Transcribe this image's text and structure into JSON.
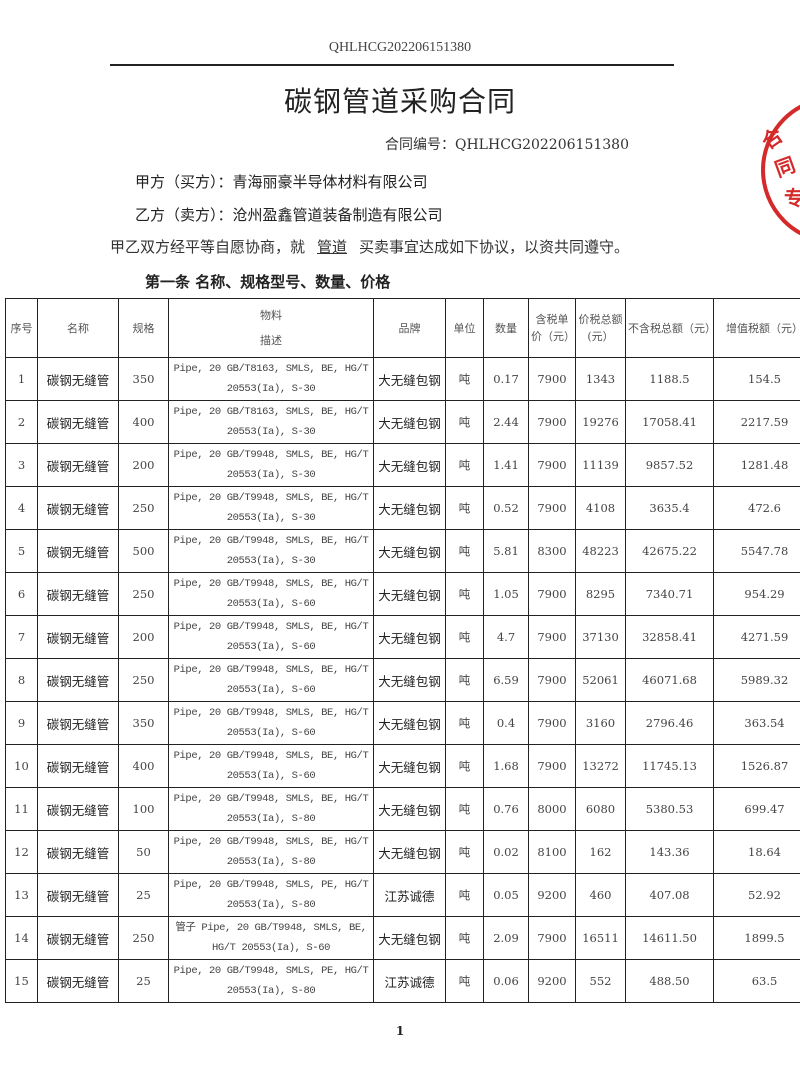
{
  "header": {
    "code": "QHLHCG202206151380"
  },
  "title": "碳钢管道采购合同",
  "contract_no": {
    "label": "合同编号：",
    "value": "QHLHCG202206151380"
  },
  "party_a": {
    "label": "甲方（买方）：",
    "value": "青海丽豪半导体材料有限公司"
  },
  "party_b": {
    "label": "乙方（卖方）：",
    "value": "沧州盈鑫管道装备制造有限公司"
  },
  "agreement": {
    "before": "甲乙双方经平等自愿协商，就",
    "subject": "管道",
    "after": "买卖事宜达成如下协议，以资共同遵守。"
  },
  "article": "第一条 名称、规格型号、数量、价格",
  "stamp": {
    "color": "#d42a2a",
    "text": "合同专"
  },
  "table": {
    "headers": {
      "no": "序号",
      "name": "名称",
      "spec": "规格",
      "material": "物料",
      "desc": "描述",
      "brand": "品牌",
      "unit": "单位",
      "qty": "数量",
      "price": "含税单价（元）",
      "total": "价税总额(元）",
      "net": "不含税总额（元）",
      "vat": "增值税额（元）"
    },
    "rows": [
      {
        "no": "1",
        "name": "碳钢无缝管",
        "spec": "350",
        "desc": "Pipe, 20 GB/T8163, SMLS, BE, HG/T 20553(Ia), S-30",
        "brand": "大无缝包钢",
        "unit": "吨",
        "qty": "0.17",
        "price": "7900",
        "total": "1343",
        "net": "1188.5",
        "vat": "154.5"
      },
      {
        "no": "2",
        "name": "碳钢无缝管",
        "spec": "400",
        "desc": "Pipe, 20 GB/T8163, SMLS, BE, HG/T 20553(Ia), S-30",
        "brand": "大无缝包钢",
        "unit": "吨",
        "qty": "2.44",
        "price": "7900",
        "total": "19276",
        "net": "17058.41",
        "vat": "2217.59"
      },
      {
        "no": "3",
        "name": "碳钢无缝管",
        "spec": "200",
        "desc": "Pipe, 20 GB/T9948, SMLS, BE, HG/T 20553(Ia), S-30",
        "brand": "大无缝包钢",
        "unit": "吨",
        "qty": "1.41",
        "price": "7900",
        "total": "11139",
        "net": "9857.52",
        "vat": "1281.48"
      },
      {
        "no": "4",
        "name": "碳钢无缝管",
        "spec": "250",
        "desc": "Pipe, 20 GB/T9948, SMLS, BE, HG/T 20553(Ia), S-30",
        "brand": "大无缝包钢",
        "unit": "吨",
        "qty": "0.52",
        "price": "7900",
        "total": "4108",
        "net": "3635.4",
        "vat": "472.6"
      },
      {
        "no": "5",
        "name": "碳钢无缝管",
        "spec": "500",
        "desc": "Pipe, 20 GB/T9948, SMLS, BE, HG/T 20553(Ia), S-30",
        "brand": "大无缝包钢",
        "unit": "吨",
        "qty": "5.81",
        "price": "8300",
        "total": "48223",
        "net": "42675.22",
        "vat": "5547.78"
      },
      {
        "no": "6",
        "name": "碳钢无缝管",
        "spec": "250",
        "desc": "Pipe, 20 GB/T9948, SMLS, BE, HG/T 20553(Ia), S-60",
        "brand": "大无缝包钢",
        "unit": "吨",
        "qty": "1.05",
        "price": "7900",
        "total": "8295",
        "net": "7340.71",
        "vat": "954.29"
      },
      {
        "no": "7",
        "name": "碳钢无缝管",
        "spec": "200",
        "desc": "Pipe, 20 GB/T9948, SMLS, BE, HG/T 20553(Ia), S-60",
        "brand": "大无缝包钢",
        "unit": "吨",
        "qty": "4.7",
        "price": "7900",
        "total": "37130",
        "net": "32858.41",
        "vat": "4271.59"
      },
      {
        "no": "8",
        "name": "碳钢无缝管",
        "spec": "250",
        "desc": "Pipe, 20 GB/T9948, SMLS, BE, HG/T 20553(Ia), S-60",
        "brand": "大无缝包钢",
        "unit": "吨",
        "qty": "6.59",
        "price": "7900",
        "total": "52061",
        "net": "46071.68",
        "vat": "5989.32"
      },
      {
        "no": "9",
        "name": "碳钢无缝管",
        "spec": "350",
        "desc": "Pipe, 20 GB/T9948, SMLS, BE, HG/T 20553(Ia), S-60",
        "brand": "大无缝包钢",
        "unit": "吨",
        "qty": "0.4",
        "price": "7900",
        "total": "3160",
        "net": "2796.46",
        "vat": "363.54"
      },
      {
        "no": "10",
        "name": "碳钢无缝管",
        "spec": "400",
        "desc": "Pipe, 20 GB/T9948, SMLS, BE, HG/T 20553(Ia), S-60",
        "brand": "大无缝包钢",
        "unit": "吨",
        "qty": "1.68",
        "price": "7900",
        "total": "13272",
        "net": "11745.13",
        "vat": "1526.87"
      },
      {
        "no": "11",
        "name": "碳钢无缝管",
        "spec": "100",
        "desc": "Pipe, 20 GB/T9948, SMLS, BE, HG/T 20553(Ia), S-80",
        "brand": "大无缝包钢",
        "unit": "吨",
        "qty": "0.76",
        "price": "8000",
        "total": "6080",
        "net": "5380.53",
        "vat": "699.47"
      },
      {
        "no": "12",
        "name": "碳钢无缝管",
        "spec": "50",
        "desc": "Pipe, 20 GB/T9948, SMLS, BE, HG/T 20553(Ia), S-80",
        "brand": "大无缝包钢",
        "unit": "吨",
        "qty": "0.02",
        "price": "8100",
        "total": "162",
        "net": "143.36",
        "vat": "18.64"
      },
      {
        "no": "13",
        "name": "碳钢无缝管",
        "spec": "25",
        "desc": "Pipe, 20 GB/T9948, SMLS, PE, HG/T 20553(Ia), S-80",
        "brand": "江苏诚德",
        "unit": "吨",
        "qty": "0.05",
        "price": "9200",
        "total": "460",
        "net": "407.08",
        "vat": "52.92"
      },
      {
        "no": "14",
        "name": "碳钢无缝管",
        "spec": "250",
        "desc": "管子 Pipe, 20 GB/T9948, SMLS, BE, HG/T 20553(Ia), S-60",
        "brand": "大无缝包钢",
        "unit": "吨",
        "qty": "2.09",
        "price": "7900",
        "total": "16511",
        "net": "14611.50",
        "vat": "1899.5"
      },
      {
        "no": "15",
        "name": "碳钢无缝管",
        "spec": "25",
        "desc": "Pipe, 20 GB/T9948, SMLS, PE, HG/T 20553(Ia), S-80",
        "brand": "江苏诚德",
        "unit": "吨",
        "qty": "0.06",
        "price": "9200",
        "total": "552",
        "net": "488.50",
        "vat": "63.5"
      }
    ]
  },
  "page_number": "1"
}
